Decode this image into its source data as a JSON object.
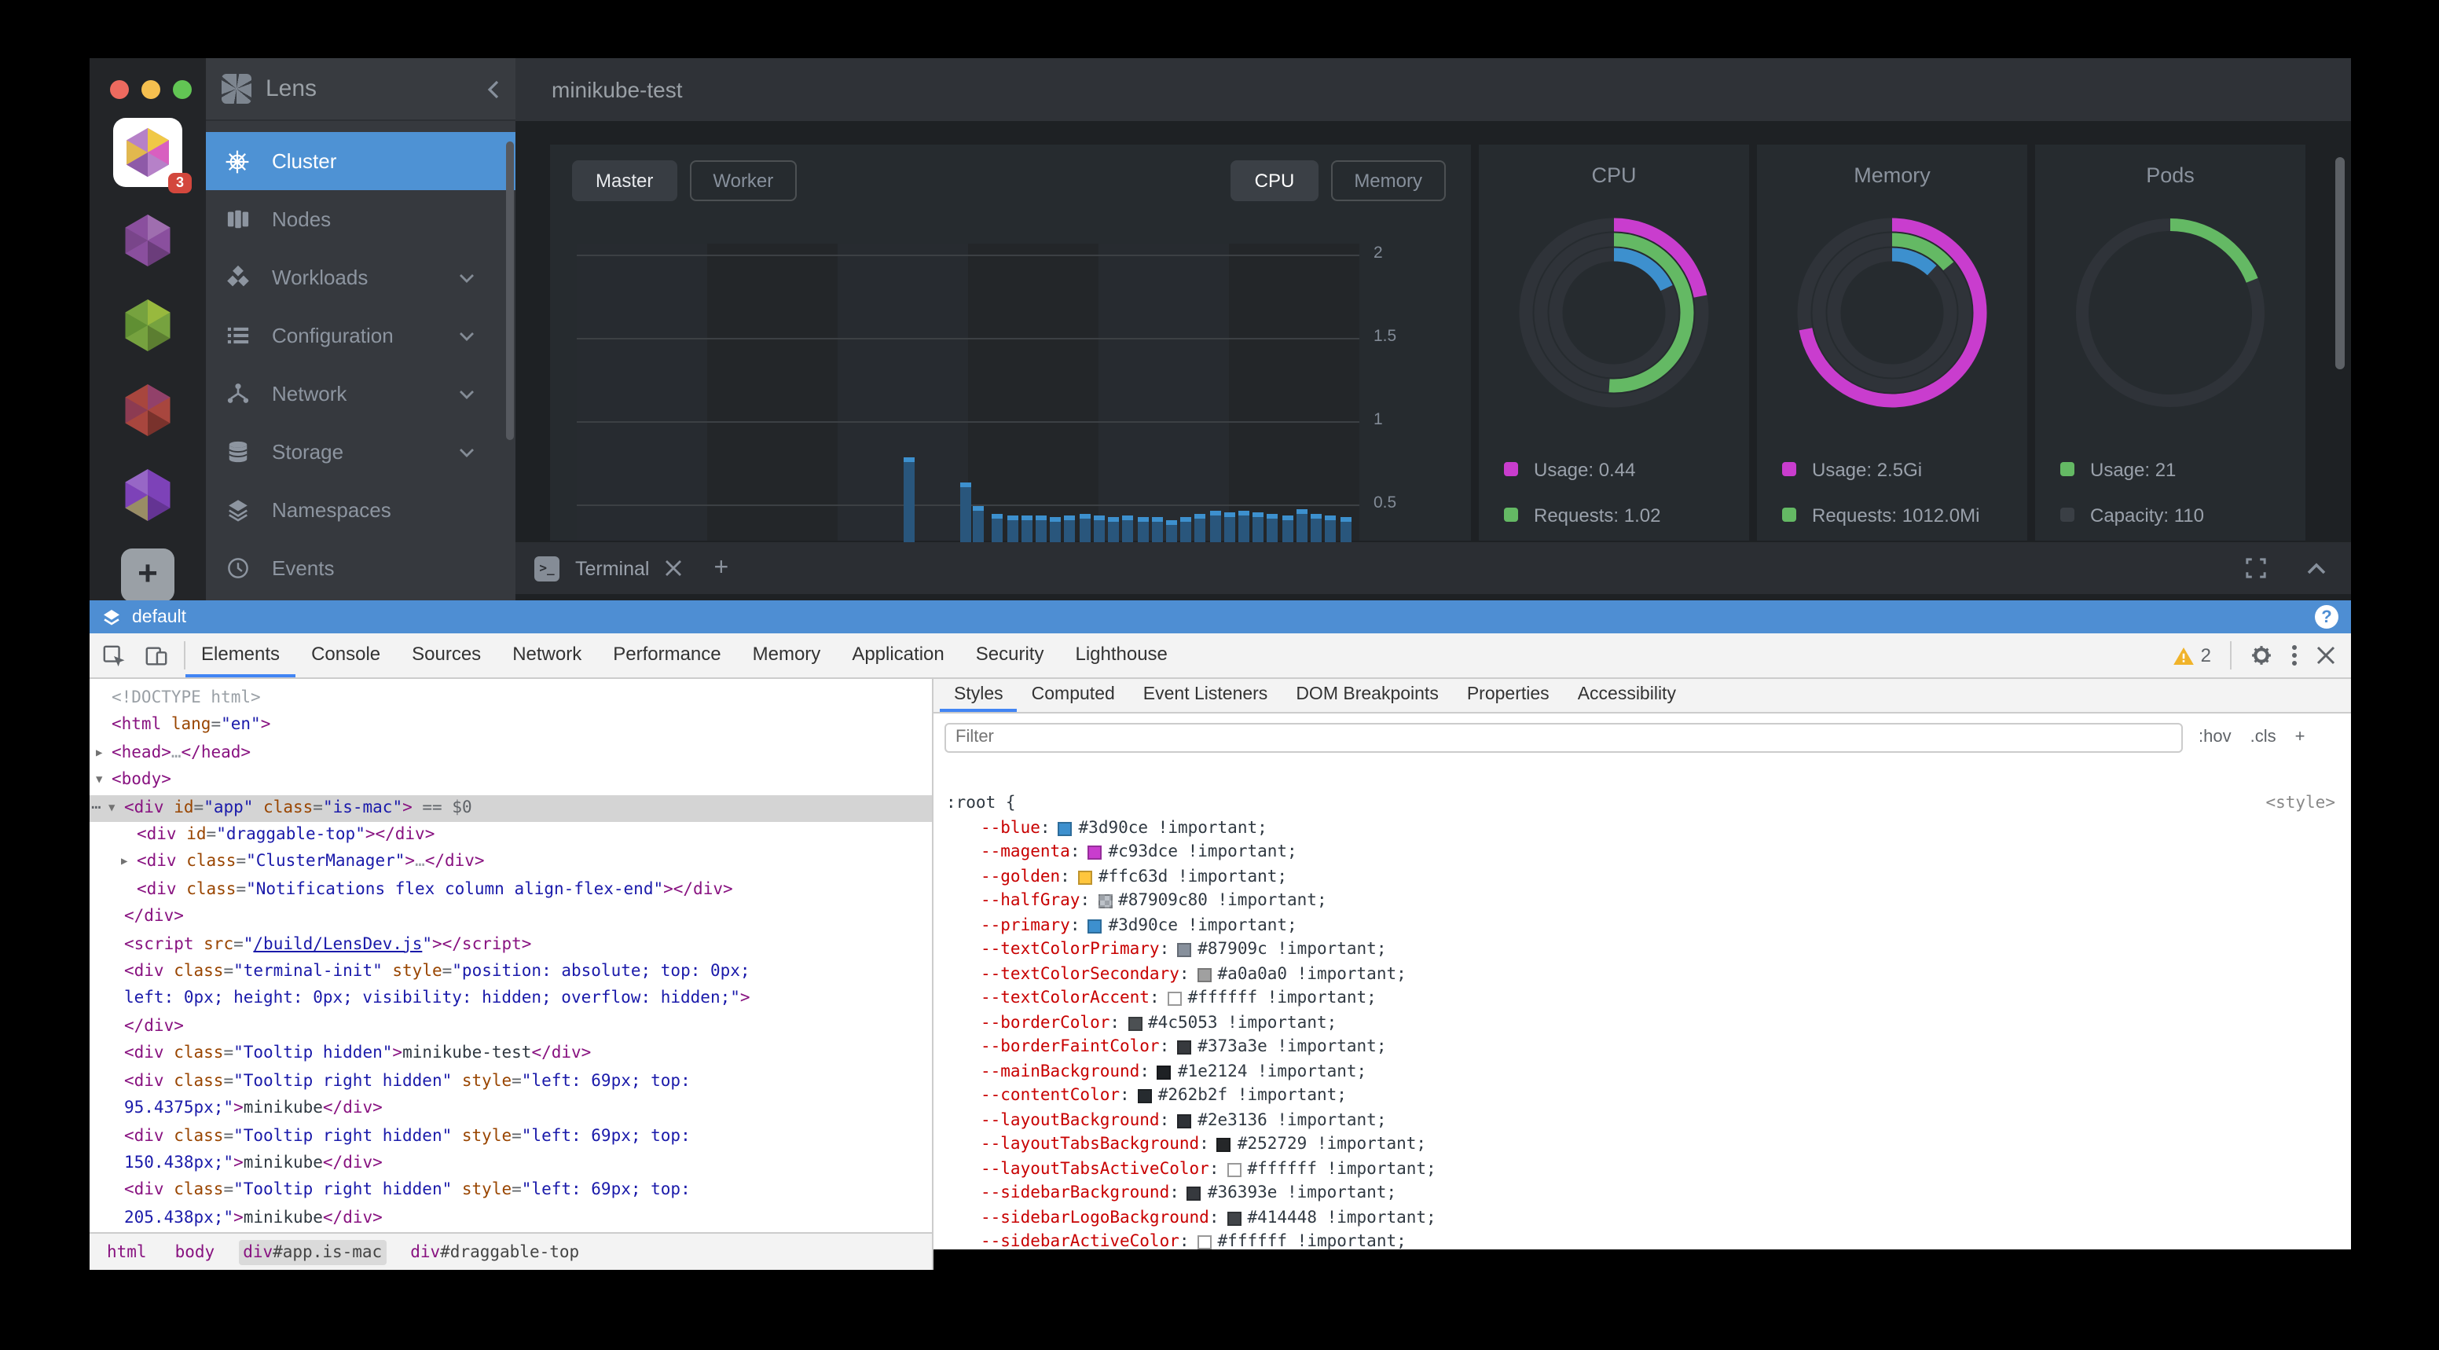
{
  "app": {
    "lens_title": "Lens",
    "cluster_badge": "3"
  },
  "header": {
    "title": "minikube-test"
  },
  "sidebar": {
    "items": [
      {
        "icon": "wheel",
        "label": "Cluster",
        "active": true,
        "chevron": false
      },
      {
        "icon": "nodes",
        "label": "Nodes",
        "active": false,
        "chevron": false
      },
      {
        "icon": "workloads",
        "label": "Workloads",
        "active": false,
        "chevron": true
      },
      {
        "icon": "config",
        "label": "Configuration",
        "active": false,
        "chevron": true
      },
      {
        "icon": "network",
        "label": "Network",
        "active": false,
        "chevron": true
      },
      {
        "icon": "storage",
        "label": "Storage",
        "active": false,
        "chevron": true
      },
      {
        "icon": "namespaces",
        "label": "Namespaces",
        "active": false,
        "chevron": false
      },
      {
        "icon": "events",
        "label": "Events",
        "active": false,
        "chevron": false
      }
    ]
  },
  "overview": {
    "node_tabs": [
      {
        "label": "Master",
        "active": true
      },
      {
        "label": "Worker",
        "active": false
      }
    ],
    "metric_tabs": [
      {
        "label": "CPU",
        "active": true
      },
      {
        "label": "Memory",
        "active": false
      }
    ],
    "donuts": [
      {
        "title": "CPU",
        "rings": [
          {
            "color": "#c93dce",
            "pct": 22
          },
          {
            "color": "#64b964",
            "pct": 51
          },
          {
            "color": "#3d90ce",
            "pct": 18
          }
        ],
        "legend": [
          {
            "color": "#c93dce",
            "label": "Usage: 0.44"
          },
          {
            "color": "#64b964",
            "label": "Requests: 1.02"
          }
        ]
      },
      {
        "title": "Memory",
        "rings": [
          {
            "color": "#c93dce",
            "pct": 72
          },
          {
            "color": "#64b964",
            "pct": 14
          },
          {
            "color": "#3d90ce",
            "pct": 12
          }
        ],
        "legend": [
          {
            "color": "#c93dce",
            "label": "Usage: 2.5Gi"
          },
          {
            "color": "#64b964",
            "label": "Requests: 1012.0Mi"
          }
        ]
      },
      {
        "title": "Pods",
        "rings": [
          {
            "color": "#64b964",
            "pct": 19
          }
        ],
        "legend": [
          {
            "color": "#64b964",
            "label": "Usage: 21"
          },
          {
            "color": "#3a3f45",
            "label": "Capacity: 110"
          }
        ]
      }
    ]
  },
  "chart_data": {
    "type": "bar",
    "title": "",
    "xlabel": "",
    "ylabel": "",
    "ylim": [
      0,
      2
    ],
    "yticks": [
      2,
      1.5,
      1,
      0.5
    ],
    "grid": true,
    "bar_color": "#3d90ce",
    "bars": [
      [
        0.425,
        0.78
      ],
      [
        0.497,
        0.63
      ],
      [
        0.513,
        0.49
      ],
      [
        0.538,
        0.44
      ],
      [
        0.5565,
        0.43
      ],
      [
        0.575,
        0.43
      ],
      [
        0.5935,
        0.43
      ],
      [
        0.612,
        0.42
      ],
      [
        0.6305,
        0.43
      ],
      [
        0.649,
        0.44
      ],
      [
        0.6675,
        0.43
      ],
      [
        0.686,
        0.42
      ],
      [
        0.7045,
        0.43
      ],
      [
        0.723,
        0.42
      ],
      [
        0.7415,
        0.42
      ],
      [
        0.76,
        0.41
      ],
      [
        0.7785,
        0.42
      ],
      [
        0.797,
        0.44
      ],
      [
        0.8155,
        0.46
      ],
      [
        0.834,
        0.45
      ],
      [
        0.8525,
        0.46
      ],
      [
        0.871,
        0.45
      ],
      [
        0.8895,
        0.44
      ],
      [
        0.908,
        0.43
      ],
      [
        0.9265,
        0.47
      ],
      [
        0.945,
        0.44
      ],
      [
        0.9635,
        0.43
      ],
      [
        0.982,
        0.42
      ]
    ]
  },
  "terminal": {
    "tab": "Terminal"
  },
  "devtools": {
    "context": "default",
    "tabs": [
      {
        "label": "Elements",
        "active": true
      },
      {
        "label": "Console"
      },
      {
        "label": "Sources"
      },
      {
        "label": "Network"
      },
      {
        "label": "Performance"
      },
      {
        "label": "Memory"
      },
      {
        "label": "Application"
      },
      {
        "label": "Security"
      },
      {
        "label": "Lighthouse"
      }
    ],
    "warning_count": "2",
    "styles_tabs": [
      {
        "label": "Styles",
        "active": true
      },
      {
        "label": "Computed"
      },
      {
        "label": "Event Listeners"
      },
      {
        "label": "DOM Breakpoints"
      },
      {
        "label": "Properties"
      },
      {
        "label": "Accessibility"
      }
    ],
    "filter_placeholder": "Filter",
    "pseudo_btn": ":hov",
    "cls_btn": ".cls",
    "add_btn": "+",
    "selector": ":root {",
    "style_tag": "<style>",
    "props": [
      {
        "name": "--blue",
        "value": "#3d90ce !important;",
        "swatch": "#3d90ce"
      },
      {
        "name": "--magenta",
        "value": "#c93dce !important;",
        "swatch": "#c93dce"
      },
      {
        "name": "--golden",
        "value": "#ffc63d !important;",
        "swatch": "#ffc63d"
      },
      {
        "name": "--halfGray",
        "value": "#87909c80 !important;",
        "swatch": "#87909c",
        "alpha": true
      },
      {
        "name": "--primary",
        "value": "#3d90ce !important;",
        "swatch": "#3d90ce"
      },
      {
        "name": "--textColorPrimary",
        "value": "#87909c !important;",
        "swatch": "#87909c"
      },
      {
        "name": "--textColorSecondary",
        "value": "#a0a0a0 !important;",
        "swatch": "#a0a0a0"
      },
      {
        "name": "--textColorAccent",
        "value": "#ffffff !important;",
        "swatch": "#ffffff",
        "light": true
      },
      {
        "name": "--borderColor",
        "value": "#4c5053 !important;",
        "swatch": "#4c5053"
      },
      {
        "name": "--borderFaintColor",
        "value": "#373a3e !important;",
        "swatch": "#373a3e"
      },
      {
        "name": "--mainBackground",
        "value": "#1e2124 !important;",
        "swatch": "#1e2124"
      },
      {
        "name": "--contentColor",
        "value": "#262b2f !important;",
        "swatch": "#262b2f"
      },
      {
        "name": "--layoutBackground",
        "value": "#2e3136 !important;",
        "swatch": "#2e3136"
      },
      {
        "name": "--layoutTabsBackground",
        "value": "#252729 !important;",
        "swatch": "#252729"
      },
      {
        "name": "--layoutTabsActiveColor",
        "value": "#ffffff !important;",
        "swatch": "#ffffff",
        "light": true
      },
      {
        "name": "--sidebarBackground",
        "value": "#36393e !important;",
        "swatch": "#36393e"
      },
      {
        "name": "--sidebarLogoBackground",
        "value": "#414448 !important;",
        "swatch": "#414448"
      },
      {
        "name": "--sidebarActiveColor",
        "value": "#ffffff !important;",
        "swatch": "#ffffff",
        "light": true
      }
    ],
    "tree": [
      {
        "i": 0,
        "tok": [
          [
            "g",
            "<!DOCTYPE html>"
          ]
        ]
      },
      {
        "i": 0,
        "tok": [
          [
            "t",
            "<html "
          ],
          [
            "a",
            "lang"
          ],
          [
            "m",
            "="
          ],
          [
            "v",
            "\"en\""
          ],
          [
            "t",
            ">"
          ]
        ]
      },
      {
        "i": 0,
        "ar": "c",
        "tok": [
          [
            "t",
            "<head>"
          ],
          [
            "g",
            "…"
          ],
          [
            "t",
            "</head>"
          ]
        ]
      },
      {
        "i": 0,
        "ar": "o",
        "tok": [
          [
            "t",
            "<body>"
          ]
        ]
      },
      {
        "i": 1,
        "ar": "o",
        "sel": true,
        "dots": true,
        "tok": [
          [
            "t",
            "<div "
          ],
          [
            "a",
            "id"
          ],
          [
            "m",
            "="
          ],
          [
            "v",
            "\"app\""
          ],
          [
            "a",
            " class"
          ],
          [
            "m",
            "="
          ],
          [
            "v",
            "\"is-mac\""
          ],
          [
            "t",
            ">"
          ],
          [
            "m",
            " == $0"
          ]
        ]
      },
      {
        "i": 2,
        "tok": [
          [
            "t",
            "<div "
          ],
          [
            "a",
            "id"
          ],
          [
            "m",
            "="
          ],
          [
            "v",
            "\"draggable-top\""
          ],
          [
            "t",
            "></div>"
          ]
        ]
      },
      {
        "i": 2,
        "ar": "c",
        "tok": [
          [
            "t",
            "<div "
          ],
          [
            "a",
            "class"
          ],
          [
            "m",
            "="
          ],
          [
            "v",
            "\"ClusterManager\""
          ],
          [
            "t",
            ">"
          ],
          [
            "g",
            "…"
          ],
          [
            "t",
            "</div>"
          ]
        ]
      },
      {
        "i": 2,
        "tok": [
          [
            "t",
            "<div "
          ],
          [
            "a",
            "class"
          ],
          [
            "m",
            "="
          ],
          [
            "v",
            "\"Notifications flex column align-flex-end\""
          ],
          [
            "t",
            "></div>"
          ]
        ]
      },
      {
        "i": 1,
        "tok": [
          [
            "t",
            "</div>"
          ]
        ]
      },
      {
        "i": 1,
        "tok": [
          [
            "t",
            "<script "
          ],
          [
            "a",
            "src"
          ],
          [
            "m",
            "="
          ],
          [
            "v",
            "\""
          ],
          [
            "l",
            "/build/LensDev.js"
          ],
          [
            "v",
            "\""
          ],
          [
            "t",
            "></script>"
          ]
        ]
      },
      {
        "i": 1,
        "tok": [
          [
            "t",
            "<div "
          ],
          [
            "a",
            "class"
          ],
          [
            "m",
            "="
          ],
          [
            "v",
            "\"terminal-init\""
          ],
          [
            "a",
            " style"
          ],
          [
            "m",
            "="
          ],
          [
            "v",
            "\"position: absolute; top: 0px;"
          ]
        ]
      },
      {
        "i": 1,
        "cont": true,
        "tok": [
          [
            "v",
            "left: 0px; height: 0px; visibility: hidden; overflow: hidden;\""
          ],
          [
            "t",
            ">"
          ]
        ]
      },
      {
        "i": 1,
        "tok": [
          [
            "t",
            "</div>"
          ]
        ]
      },
      {
        "i": 1,
        "tok": [
          [
            "t",
            "<div "
          ],
          [
            "a",
            "class"
          ],
          [
            "m",
            "="
          ],
          [
            "v",
            "\"Tooltip hidden\""
          ],
          [
            "t",
            ">"
          ],
          [
            "x",
            "minikube-test"
          ],
          [
            "t",
            "</div>"
          ]
        ]
      },
      {
        "i": 1,
        "tok": [
          [
            "t",
            "<div "
          ],
          [
            "a",
            "class"
          ],
          [
            "m",
            "="
          ],
          [
            "v",
            "\"Tooltip right hidden\""
          ],
          [
            "a",
            " style"
          ],
          [
            "m",
            "="
          ],
          [
            "v",
            "\"left: 69px; top:"
          ]
        ]
      },
      {
        "i": 1,
        "cont": true,
        "tok": [
          [
            "v",
            "95.4375px;\""
          ],
          [
            "t",
            ">"
          ],
          [
            "x",
            "minikube"
          ],
          [
            "t",
            "</div>"
          ]
        ]
      },
      {
        "i": 1,
        "tok": [
          [
            "t",
            "<div "
          ],
          [
            "a",
            "class"
          ],
          [
            "m",
            "="
          ],
          [
            "v",
            "\"Tooltip right hidden\""
          ],
          [
            "a",
            " style"
          ],
          [
            "m",
            "="
          ],
          [
            "v",
            "\"left: 69px; top:"
          ]
        ]
      },
      {
        "i": 1,
        "cont": true,
        "tok": [
          [
            "v",
            "150.438px;\""
          ],
          [
            "t",
            ">"
          ],
          [
            "x",
            "minikube"
          ],
          [
            "t",
            "</div>"
          ]
        ]
      },
      {
        "i": 1,
        "tok": [
          [
            "t",
            "<div "
          ],
          [
            "a",
            "class"
          ],
          [
            "m",
            "="
          ],
          [
            "v",
            "\"Tooltip right hidden\""
          ],
          [
            "a",
            " style"
          ],
          [
            "m",
            "="
          ],
          [
            "v",
            "\"left: 69px; top:"
          ]
        ]
      },
      {
        "i": 1,
        "cont": true,
        "tok": [
          [
            "v",
            "205.438px;\""
          ],
          [
            "t",
            ">"
          ],
          [
            "x",
            "minikube"
          ],
          [
            "t",
            "</div>"
          ]
        ]
      }
    ],
    "crumbs": [
      {
        "tag": "html",
        "rest": ""
      },
      {
        "tag": "body",
        "rest": ""
      },
      {
        "tag": "div",
        "rest": "#app.is-mac",
        "active": true
      },
      {
        "tag": "div",
        "rest": "#draggable-top"
      }
    ]
  },
  "colors": {
    "accent_blue": "#3d90ce",
    "magenta": "#c93dce",
    "green": "#64b964",
    "sidebar_active": "#4e92d4",
    "devtools_info_bar": "#4e8ed3",
    "warning_yellow": "#f0b32a"
  }
}
